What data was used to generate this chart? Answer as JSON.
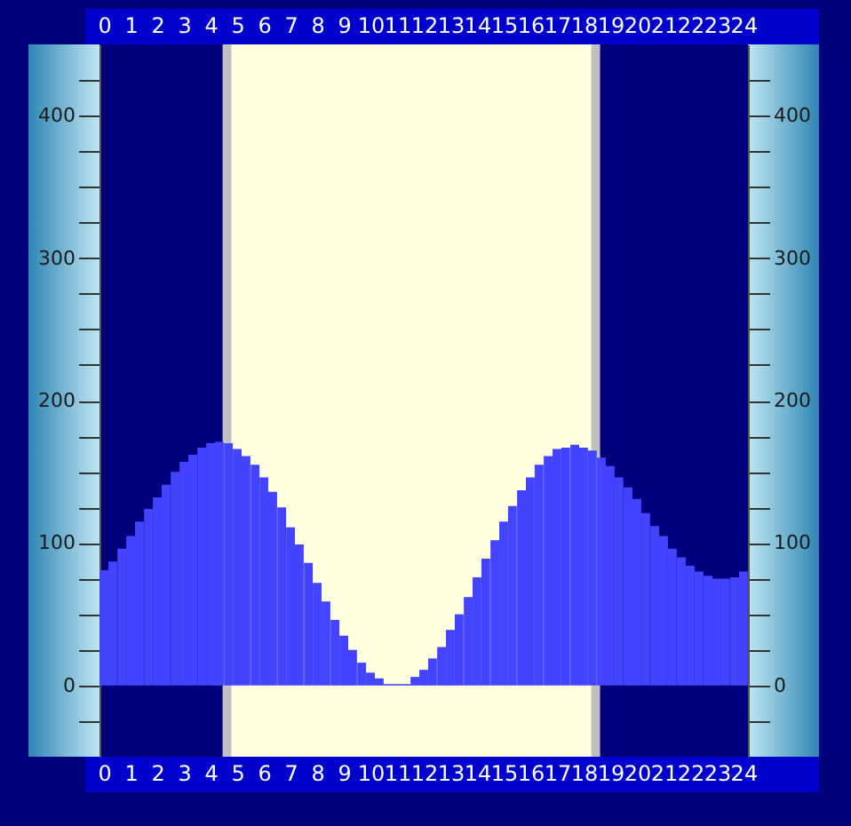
{
  "chart_data": {
    "type": "bar",
    "x": [
      0,
      0.33,
      0.67,
      1,
      1.33,
      1.67,
      2,
      2.33,
      2.67,
      3,
      3.33,
      3.67,
      4,
      4.33,
      4.67,
      5,
      5.33,
      5.67,
      6,
      6.33,
      6.67,
      7,
      7.33,
      7.67,
      8,
      8.33,
      8.67,
      9,
      9.33,
      9.67,
      10,
      10.33,
      10.67,
      11,
      11.33,
      11.67,
      12,
      12.33,
      12.67,
      13,
      13.33,
      13.67,
      14,
      14.33,
      14.67,
      15,
      15.33,
      15.67,
      16,
      16.33,
      16.67,
      17,
      17.33,
      17.67,
      18,
      18.33,
      18.67,
      19,
      19.33,
      19.67,
      20,
      20.33,
      20.67,
      21,
      21.33,
      21.67,
      22,
      22.33,
      22.67,
      23,
      23.33,
      23.67,
      24
    ],
    "series": [
      {
        "color": "#4444ff",
        "values": [
          81,
          87,
          96,
          105,
          115,
          124,
          132,
          141,
          150,
          157,
          162,
          167,
          170,
          171,
          170,
          166,
          161,
          155,
          146,
          136,
          125,
          111,
          99,
          86,
          72,
          59,
          46,
          35,
          25,
          16,
          9,
          5,
          1,
          1,
          1,
          6,
          11,
          19,
          27,
          39,
          50,
          62,
          76,
          89,
          102,
          115,
          126,
          137,
          146,
          155,
          161,
          166,
          167,
          169,
          167,
          165,
          160,
          154,
          146,
          139,
          131,
          121,
          112,
          105,
          96,
          90,
          84,
          80,
          77,
          75,
          75,
          76,
          80
        ]
      }
    ],
    "xlim": [
      -0.17,
      24.17
    ],
    "xticks": [
      0,
      1,
      2,
      3,
      4,
      5,
      6,
      7,
      8,
      9,
      10,
      11,
      12,
      13,
      14,
      15,
      16,
      17,
      18,
      19,
      20,
      21,
      22,
      23,
      24
    ],
    "x2lim": [
      -0.17,
      24.17
    ],
    "x2ticks": [
      0,
      1,
      2,
      3,
      4,
      5,
      6,
      7,
      8,
      9,
      10,
      11,
      12,
      13,
      14,
      15,
      16,
      17,
      18,
      19,
      20,
      21,
      22,
      23,
      24
    ],
    "ylim": [
      -50,
      450
    ],
    "yticks": [
      {
        "value": -25,
        "label": null
      },
      0,
      {
        "value": 25,
        "label": null
      },
      {
        "value": 50,
        "label": null
      },
      {
        "value": 75,
        "label": null
      },
      100,
      {
        "value": 125,
        "label": null
      },
      {
        "value": 150,
        "label": null
      },
      {
        "value": 175,
        "label": null
      },
      200,
      {
        "value": 225,
        "label": null
      },
      {
        "value": 250,
        "label": null
      },
      {
        "value": 275,
        "label": null
      },
      300,
      {
        "value": 325,
        "label": null
      },
      {
        "value": 350,
        "label": null
      },
      {
        "value": 375,
        "label": null
      },
      400,
      {
        "value": 425,
        "label": null
      }
    ],
    "y2lim": [
      -50,
      450
    ],
    "y2ticks": [
      {
        "value": -25,
        "label": null
      },
      0,
      {
        "value": 25,
        "label": null
      },
      {
        "value": 50,
        "label": null
      },
      {
        "value": 75,
        "label": null
      },
      100,
      {
        "value": 125,
        "label": null
      },
      {
        "value": 150,
        "label": null
      },
      {
        "value": 175,
        "label": null
      },
      200,
      {
        "value": 225,
        "label": null
      },
      {
        "value": 250,
        "label": null
      },
      {
        "value": 275,
        "label": null
      },
      300,
      {
        "value": 325,
        "label": null
      },
      {
        "value": 350,
        "label": null
      },
      {
        "value": 375,
        "label": null
      },
      400,
      {
        "value": 425,
        "label": null
      }
    ],
    "bands": [
      {
        "axis": "x",
        "from": 4.45,
        "to": 18.62,
        "color": "#c0c0c0"
      },
      {
        "axis": "x",
        "from": 4.78,
        "to": 18.29,
        "color": "#ffffe0"
      }
    ],
    "grid": false
  }
}
